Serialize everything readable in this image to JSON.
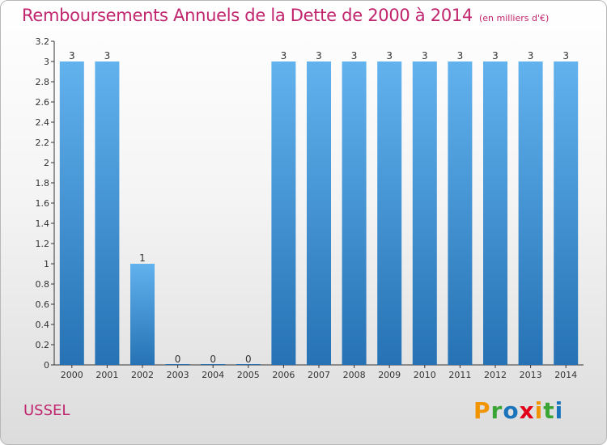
{
  "header": {
    "title": "Remboursements Annuels de la Dette de 2000 à 2014",
    "unit": "(en milliers d'€)"
  },
  "footer": {
    "commune": "USSEL",
    "logo": [
      "P",
      "r",
      "o",
      "x",
      "i",
      "t",
      "i"
    ]
  },
  "colors": {
    "title": "#c0256e",
    "bar_top": "#62b2ee",
    "bar_bottom": "#2672b4",
    "logo": [
      "#f29400",
      "#3aa535",
      "#1a74bb",
      "#e2001a",
      "#f29400",
      "#3aa535",
      "#1a74bb"
    ]
  },
  "chart_data": {
    "type": "bar",
    "title": "Remboursements Annuels de la Dette de 2000 à 2014",
    "categories": [
      "2000",
      "2001",
      "2002",
      "2003",
      "2004",
      "2005",
      "2006",
      "2007",
      "2008",
      "2009",
      "2010",
      "2011",
      "2012",
      "2013",
      "2014"
    ],
    "values": [
      3,
      3,
      1,
      0,
      0,
      0,
      3,
      3,
      3,
      3,
      3,
      3,
      3,
      3,
      3
    ],
    "data_labels": [
      "3",
      "3",
      "1",
      "0",
      "0",
      "0",
      "3",
      "3",
      "3",
      "3",
      "3",
      "3",
      "3",
      "3",
      "3"
    ],
    "yticks": [
      "0",
      "0.2",
      "0.4",
      "0.6",
      "0.8",
      "1",
      "1.2",
      "1.4",
      "1.6",
      "1.8",
      "2",
      "2.2",
      "2.4",
      "2.6",
      "2.8",
      "3",
      "3.2"
    ],
    "ylim": [
      0,
      3.2
    ],
    "xlabel": "",
    "ylabel": "",
    "grid": false,
    "legend": "none"
  }
}
